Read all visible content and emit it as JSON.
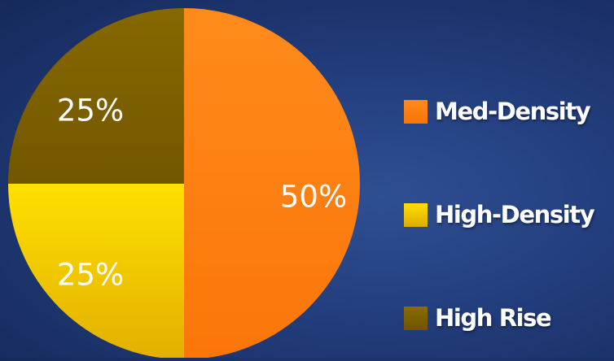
{
  "chart_data": {
    "type": "pie",
    "title": "",
    "slices": [
      {
        "label": "Med-Density",
        "value": 50,
        "display": "50%",
        "color": "#ff7f0e"
      },
      {
        "label": "High-Density",
        "value": 25,
        "display": "25%",
        "color": "#f5c800"
      },
      {
        "label": "High Rise",
        "value": 25,
        "display": "25%",
        "color": "#7d6100"
      }
    ],
    "legend_position": "right",
    "start": "12 o'clock",
    "direction": "clockwise"
  },
  "legend": {
    "items": [
      {
        "label": "Med-Density",
        "color": "#ff7f0e"
      },
      {
        "label": "High-Density",
        "color": "#f5c800"
      },
      {
        "label": "High Rise",
        "color": "#7d6100"
      }
    ]
  }
}
